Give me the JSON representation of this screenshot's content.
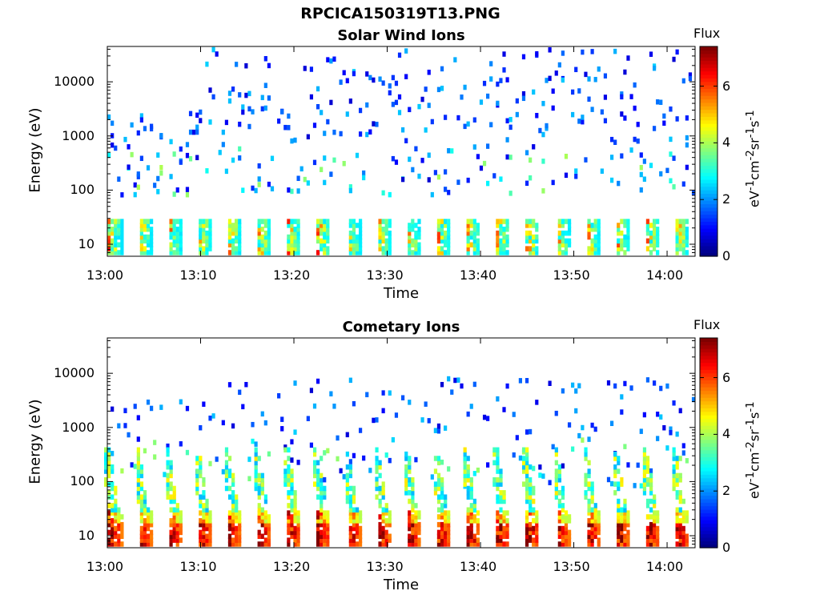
{
  "main_title": "RPCICA150319T13.PNG",
  "chart_data": [
    {
      "type": "heatmap",
      "title": "Solar Wind Ions",
      "xlabel": "Time",
      "ylabel": "Energy (eV)",
      "x_ticks": [
        "13:00",
        "13:10",
        "13:20",
        "13:30",
        "13:40",
        "13:50",
        "14:00"
      ],
      "x_range_minutes": [
        0,
        63
      ],
      "y_scale": "log",
      "y_ticks": [
        10,
        100,
        1000,
        10000
      ],
      "y_tick_labels": [
        "10",
        "100",
        "1000",
        "10000"
      ],
      "y_range": [
        6,
        45000
      ],
      "colorbar": {
        "label": "Flux",
        "unit": "eV-1cm-2sr-1s-1",
        "ticks": [
          "0",
          "2",
          "4",
          "6"
        ],
        "range": [
          0,
          7.4
        ],
        "colormap": "jet"
      },
      "features": "Periodic bursts of ~3 min period at 10-30 eV with flux 4-7, sparse low flux (0.5-2) points from 100-40000 eV"
    },
    {
      "type": "heatmap",
      "title": "Cometary Ions",
      "xlabel": "Time",
      "ylabel": "Energy (eV)",
      "x_ticks": [
        "13:00",
        "13:10",
        "13:20",
        "13:30",
        "13:40",
        "13:50",
        "14:00"
      ],
      "x_range_minutes": [
        0,
        63
      ],
      "y_scale": "log",
      "y_ticks": [
        10,
        100,
        1000,
        10000
      ],
      "y_tick_labels": [
        "10",
        "100",
        "1000",
        "10000"
      ],
      "y_range": [
        6,
        45000
      ],
      "colorbar": {
        "label": "Flux",
        "unit": "eV-1cm-2sr-1s-1",
        "ticks": [
          "0",
          "2",
          "4",
          "6"
        ],
        "range": [
          0,
          7.4
        ],
        "colormap": "jet"
      },
      "features": "Periodic bursts of ~3 min period with high flux (6-7) at 8-20 eV and descending streaks 20-300 eV, sparse points up to 8000 eV"
    }
  ],
  "colors": {
    "background": "#ffffff",
    "axis": "#000000"
  }
}
